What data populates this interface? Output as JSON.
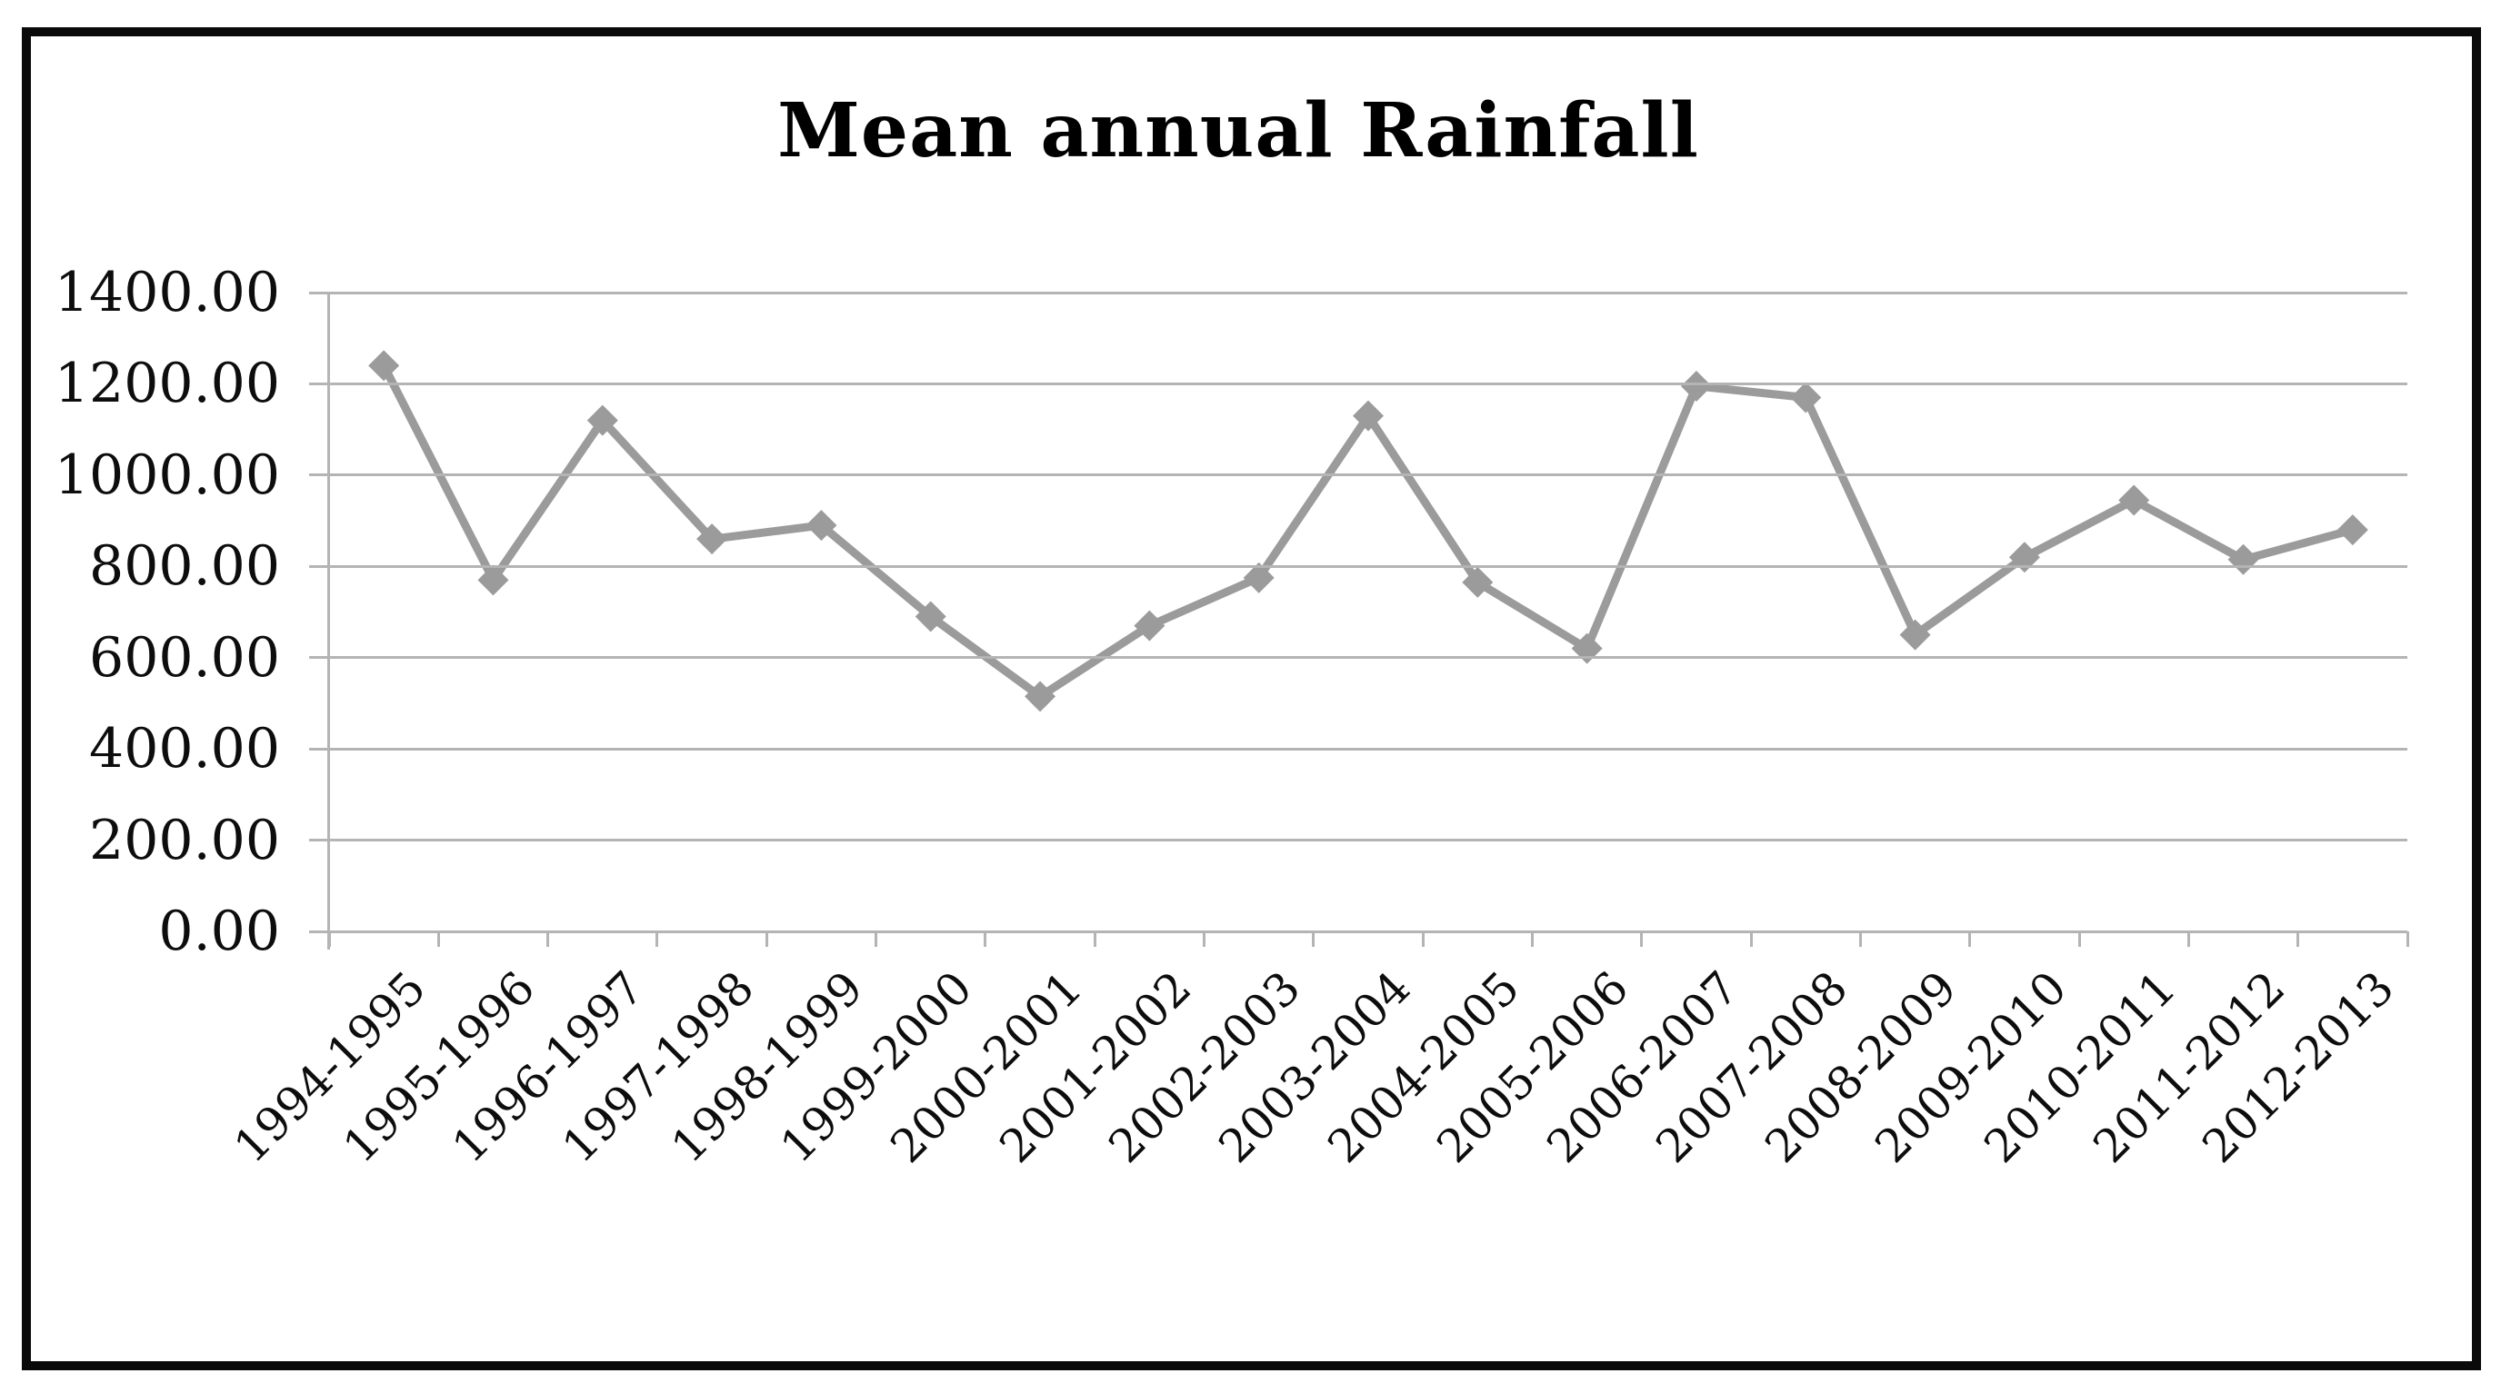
{
  "figure": {
    "background": "#ffffff",
    "border_color": "#0a0a0a"
  },
  "chart_data": {
    "type": "line",
    "title": "Mean annual Rainfall",
    "categories": [
      "1994-1995",
      "1995-1996",
      "1996-1997",
      "1997-1998",
      "1998-1999",
      "1999-2000",
      "2000-2001",
      "2001-2002",
      "2002-2003",
      "2003-2004",
      "2004-2005",
      "2005-2006",
      "2006-2007",
      "2007-2008",
      "2008-2009",
      "2009-2010",
      "2010-2011",
      "2011-2012",
      "2012-2013"
    ],
    "values": [
      1240,
      770,
      1120,
      860,
      890,
      690,
      515,
      670,
      775,
      1130,
      765,
      620,
      1195,
      1170,
      650,
      820,
      945,
      815,
      880
    ],
    "series_name": "Mean annual Rainfall",
    "xlabel": "",
    "ylabel": "",
    "ylim": [
      0,
      1400
    ],
    "ytick_step": 200,
    "ytick_labels": [
      "1400.00",
      "1200.00",
      "1000.00",
      "800.00",
      "600.00",
      "400.00",
      "200.00",
      "0.00"
    ],
    "grid": true,
    "legend": "none",
    "marker": "diamond",
    "line_color": "#9b9b9b",
    "marker_color": "#9b9b9b",
    "gridline_color": "#b4b4b4",
    "text_color": "#0d0d0d"
  }
}
